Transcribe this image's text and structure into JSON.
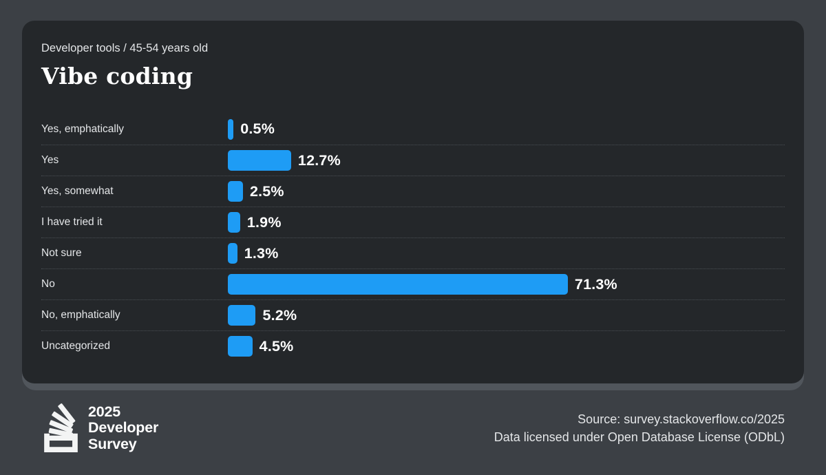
{
  "header": {
    "subtitle": "Developer tools / 45-54 years old",
    "title": "Vibe coding"
  },
  "chart_data": {
    "type": "bar",
    "orientation": "horizontal",
    "title": "Vibe coding",
    "subtitle": "Developer tools / 45-54 years old",
    "categories": [
      "Yes, emphatically",
      "Yes",
      "Yes, somewhat",
      "I have tried it",
      "Not sure",
      "No",
      "No, emphatically",
      "Uncategorized"
    ],
    "values": [
      0.5,
      12.7,
      2.5,
      1.9,
      1.3,
      71.3,
      5.2,
      4.5
    ],
    "value_labels": [
      "0.5%",
      "12.7%",
      "2.5%",
      "1.9%",
      "1.3%",
      "71.3%",
      "5.2%",
      "4.5%"
    ],
    "value_suffix": "%",
    "xlim": [
      0,
      100
    ],
    "grid": "dotted row separators",
    "legend": "none",
    "bar_color": "#1e9cf5"
  },
  "footer": {
    "logo_icon": "stackoverflow-logo",
    "logo_lines": [
      "2025",
      "Developer",
      "Survey"
    ],
    "source_line1": "Source: survey.stackoverflow.co/2025",
    "source_line2": "Data licensed under Open Database License (ODbL)"
  },
  "colors": {
    "background": "#3c4045",
    "card": "#24272a",
    "card_bottom_edge": "#51565c",
    "bar": "#1e9cf5",
    "separator": "#4a4f54",
    "text_primary": "#ffffff",
    "text_secondary": "#e4e6e8"
  }
}
